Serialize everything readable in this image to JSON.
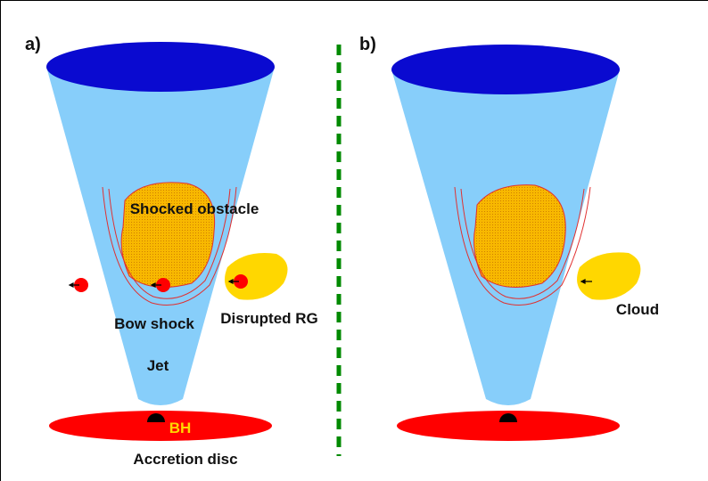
{
  "panel_a": {
    "label": "a)",
    "obstacle": "Shocked obstacle",
    "bow_shock": "Bow shock",
    "disrupted": "Disrupted RG",
    "jet": "Jet",
    "bh": "BH",
    "disc": "Accretion disc"
  },
  "panel_b": {
    "label": "b)",
    "cloud": "Cloud"
  }
}
